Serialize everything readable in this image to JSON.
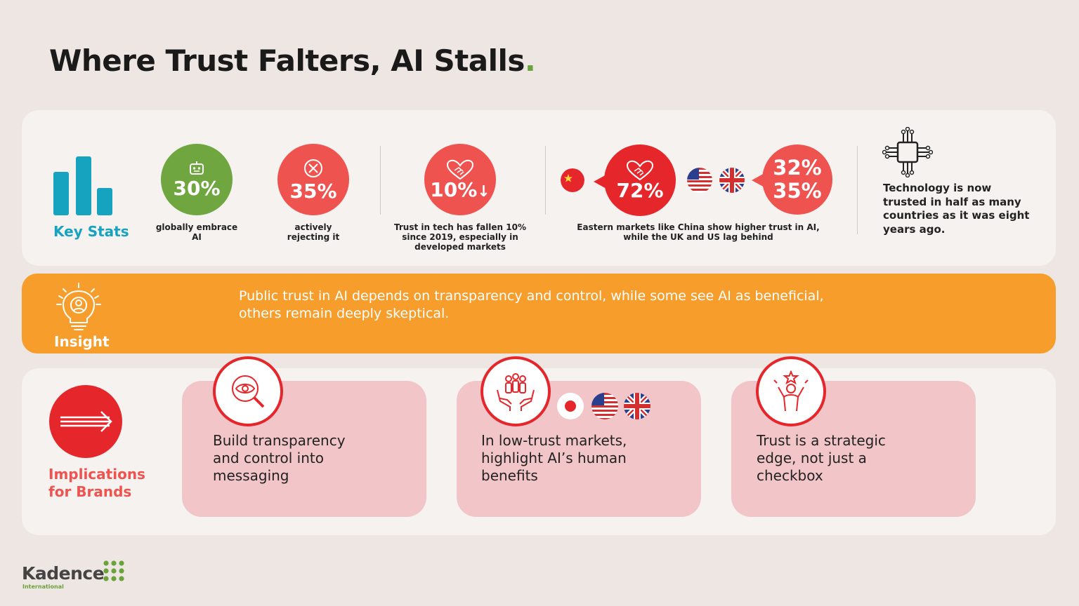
{
  "title": {
    "text": "Where Trust Falters, AI Stalls",
    "dot": "."
  },
  "key_stats": {
    "label": "Key Stats",
    "embrace": {
      "value": "30%",
      "label_l1": "globally embrace",
      "label_l2": "AI"
    },
    "reject": {
      "value": "35%",
      "label_l1": "actively",
      "label_l2": "rejecting it"
    },
    "fallen": {
      "value": "10%",
      "arrow": "↓",
      "label_l1": "Trust in tech has fallen 10%",
      "label_l2": "since 2019, especially in",
      "label_l3": "developed markets"
    },
    "regions": {
      "china_value": "72%",
      "west_value_1": "32%",
      "west_value_2": "35%",
      "label_l1": "Eastern markets like China show higher trust in AI,",
      "label_l2": "while the UK and US lag behind"
    },
    "tech": {
      "text_l1": "Technology is now",
      "text_l2": "trusted in half as many",
      "text_l3": "countries as it was eight",
      "text_l4": "years ago."
    }
  },
  "insight": {
    "label": "Insight",
    "text_l1": "Public trust in AI depends on transparency and control, while some see AI as beneficial,",
    "text_l2": "others remain deeply skeptical."
  },
  "implications": {
    "label_l1": "Implications",
    "label_l2": "for Brands",
    "cards": [
      {
        "l1": "Build transparency",
        "l2": "and control into",
        "l3": "messaging",
        "icon": "magnifier-eye-icon"
      },
      {
        "l1": "In low-trust markets,",
        "l2": "highlight AI’s human",
        "l3": "benefits",
        "icon": "hands-people-icon"
      },
      {
        "l1": "Trust is a strategic",
        "l2": "edge, not just a",
        "l3": "checkbox",
        "icon": "person-star-icon"
      }
    ]
  },
  "logo": {
    "name": "Kadence",
    "sub": "International"
  },
  "colors": {
    "green": "#6fa63f",
    "coral": "#ef5350",
    "red": "#e5262b",
    "orange": "#f79d2c",
    "teal": "#16a3bf"
  }
}
